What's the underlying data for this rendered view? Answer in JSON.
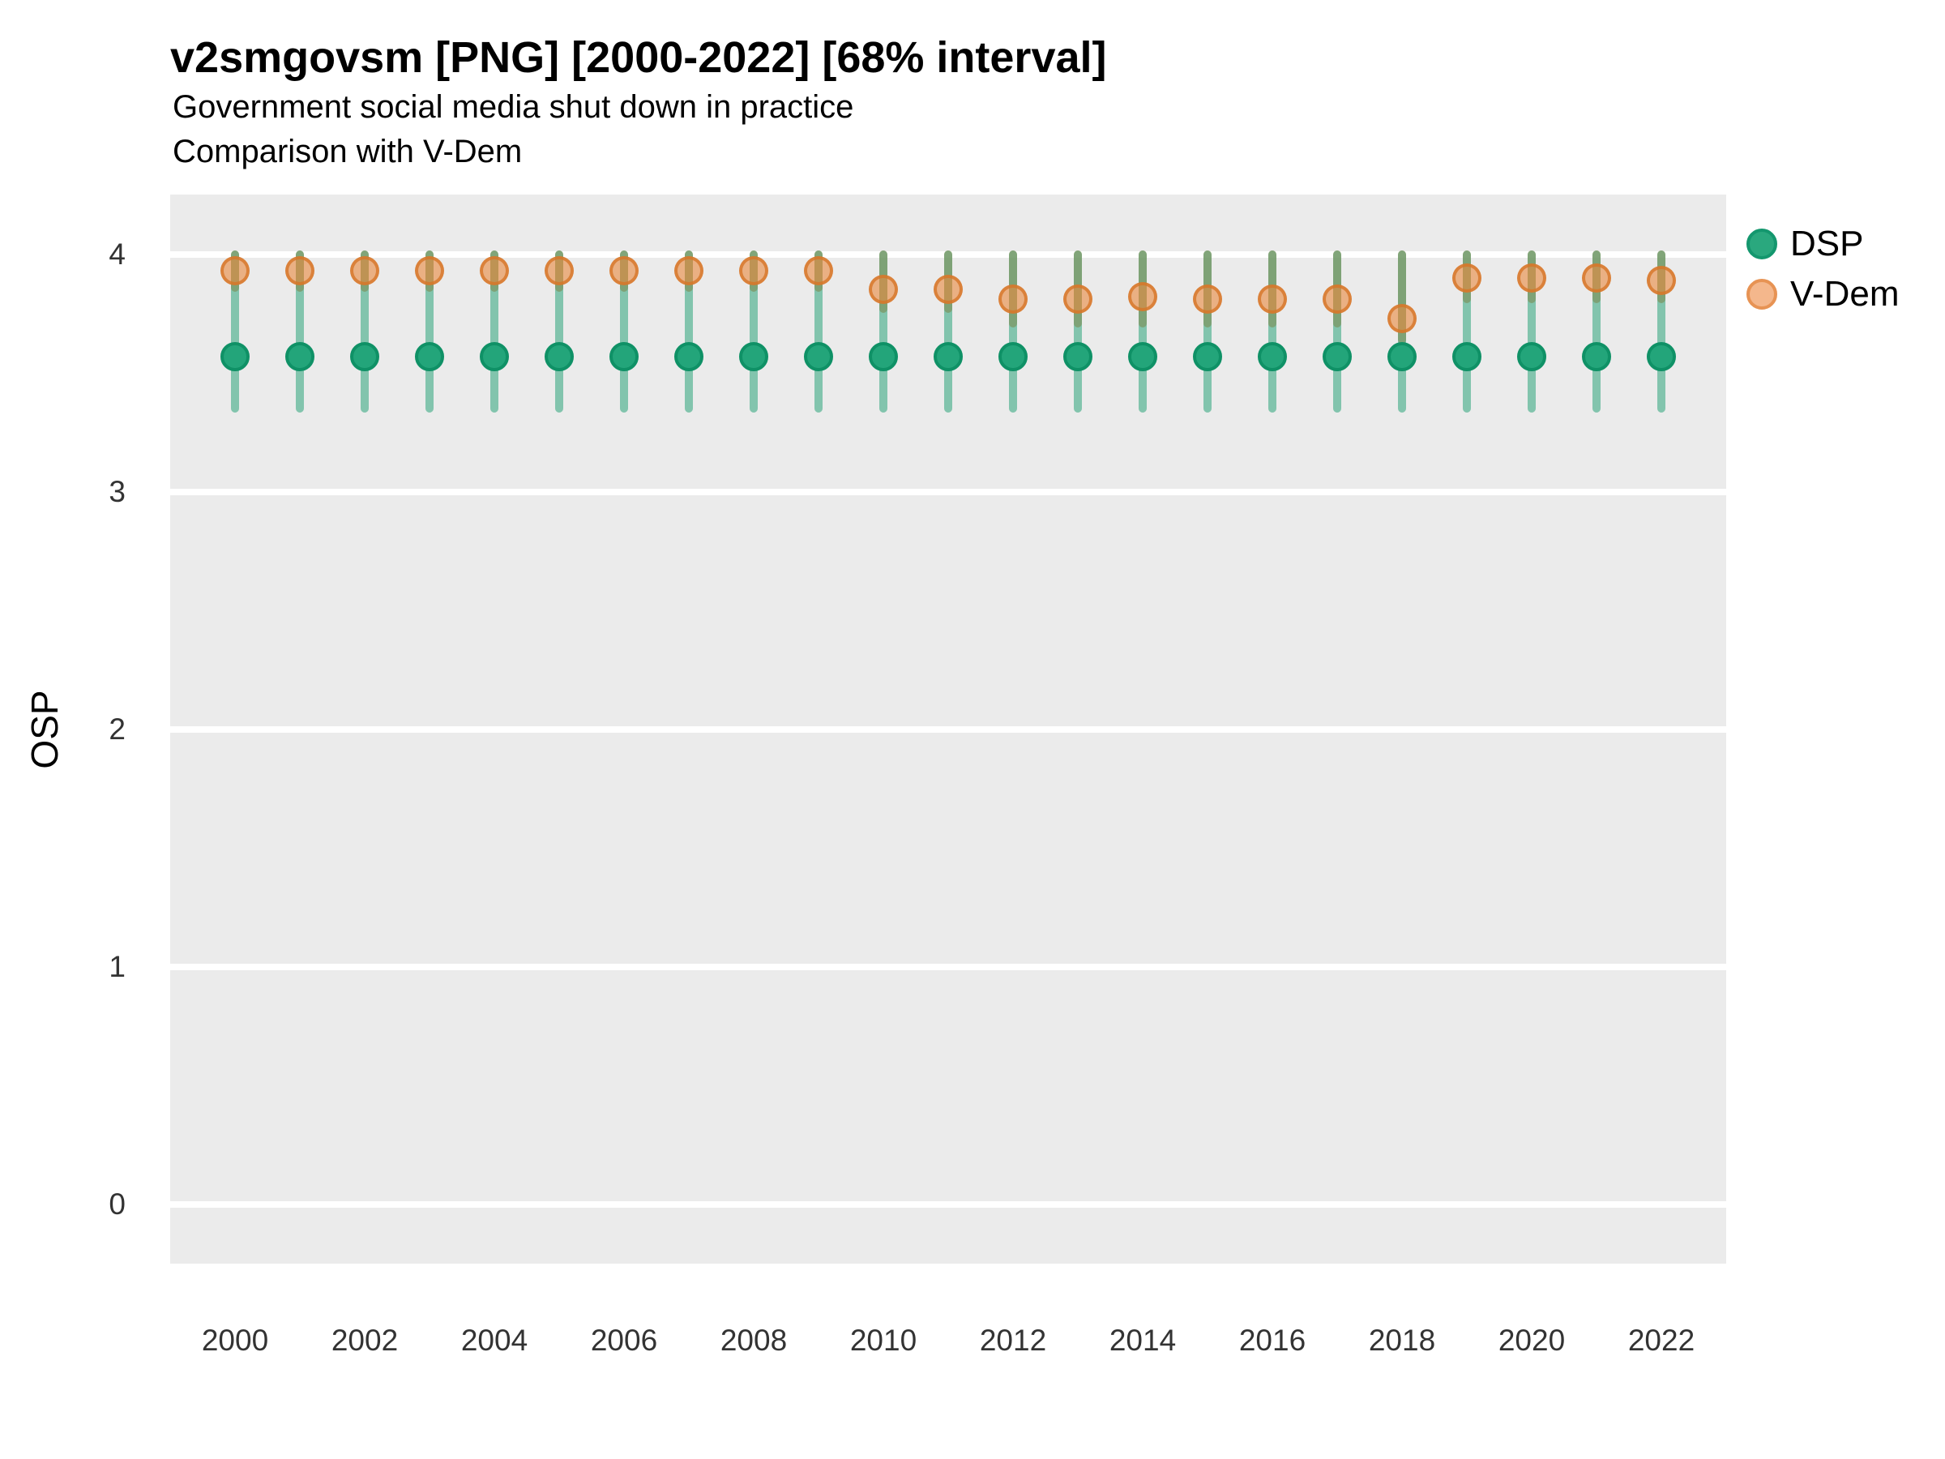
{
  "header": {
    "title": "v2smgovsm [PNG] [2000-2022] [68% interval]",
    "subtitle1": "Government social media shut down in practice",
    "subtitle2": "Comparison with V-Dem"
  },
  "axes": {
    "y_title": "OSP",
    "y_tick_labels": [
      "4",
      "3",
      "2",
      "1",
      "0"
    ],
    "x_tick_labels": [
      "2000",
      "2002",
      "2004",
      "2006",
      "2008",
      "2010",
      "2012",
      "2014",
      "2016",
      "2018",
      "2020",
      "2022"
    ]
  },
  "legend": {
    "items": [
      {
        "label": "DSP"
      },
      {
        "label": "V-Dem"
      }
    ]
  },
  "colors": {
    "panel_bg": "#ebebeb",
    "grid": "#ffffff",
    "axis_text": "#333333",
    "dsp_point_fill": "#23a57a",
    "dsp_point_stroke": "#0f9166",
    "dsp_bar": "rgba(26,158,112,0.5)",
    "vdem_point_fill": "rgba(233,136,62,0.6)",
    "vdem_point_stroke": "rgba(214,117,40,0.8)",
    "vdem_bar": "rgba(224,138,77,0.7)",
    "legend_dsp_fill": "#2aa87e",
    "legend_dsp_stroke": "#14976e",
    "legend_vdem_fill": "#f4b78c",
    "legend_vdem_stroke": "#e79354"
  },
  "chart_data": {
    "type": "scatter",
    "title": "v2smgovsm [PNG] [2000-2022] [68% interval]",
    "subtitle": [
      "Government social media shut down in practice",
      "Comparison with V-Dem"
    ],
    "ylabel": "OSP",
    "interval": "68%",
    "x": [
      2000,
      2001,
      2002,
      2003,
      2004,
      2005,
      2006,
      2007,
      2008,
      2009,
      2010,
      2011,
      2012,
      2013,
      2014,
      2015,
      2016,
      2017,
      2018,
      2019,
      2020,
      2021,
      2022
    ],
    "x_tick_years": [
      2000,
      2002,
      2004,
      2006,
      2008,
      2010,
      2012,
      2014,
      2016,
      2018,
      2020,
      2022
    ],
    "yticks": [
      4,
      3,
      2,
      1,
      0
    ],
    "ylim": [
      -0.25,
      4.25
    ],
    "grid": "white-major-horizontal",
    "legend_position": "right",
    "panel_bg": "#ebebeb",
    "series": [
      {
        "name": "DSP",
        "estimates": [
          3.57,
          3.57,
          3.57,
          3.57,
          3.57,
          3.57,
          3.57,
          3.57,
          3.57,
          3.57,
          3.57,
          3.57,
          3.57,
          3.57,
          3.57,
          3.57,
          3.57,
          3.57,
          3.57,
          3.57,
          3.57,
          3.57,
          3.57
        ],
        "lower": [
          3.35,
          3.35,
          3.35,
          3.35,
          3.35,
          3.35,
          3.35,
          3.35,
          3.35,
          3.35,
          3.35,
          3.35,
          3.35,
          3.35,
          3.35,
          3.35,
          3.35,
          3.35,
          3.35,
          3.35,
          3.35,
          3.35,
          3.35
        ],
        "upper": [
          4.0,
          4.0,
          4.0,
          4.0,
          4.0,
          4.0,
          4.0,
          4.0,
          4.0,
          4.0,
          4.0,
          4.0,
          4.0,
          4.0,
          4.0,
          4.0,
          4.0,
          4.0,
          4.0,
          4.0,
          4.0,
          4.0,
          4.0
        ]
      },
      {
        "name": "V-Dem",
        "estimates": [
          3.93,
          3.93,
          3.93,
          3.93,
          3.93,
          3.93,
          3.93,
          3.93,
          3.93,
          3.93,
          3.85,
          3.85,
          3.81,
          3.81,
          3.82,
          3.81,
          3.81,
          3.81,
          3.73,
          3.9,
          3.9,
          3.9,
          3.89
        ],
        "lower": [
          3.86,
          3.86,
          3.86,
          3.86,
          3.86,
          3.86,
          3.86,
          3.86,
          3.86,
          3.86,
          3.77,
          3.77,
          3.71,
          3.71,
          3.71,
          3.71,
          3.71,
          3.71,
          3.64,
          3.81,
          3.81,
          3.81,
          3.81
        ],
        "upper": [
          4.0,
          4.0,
          4.0,
          4.0,
          4.0,
          4.0,
          4.0,
          4.0,
          4.0,
          4.0,
          4.0,
          4.0,
          4.0,
          4.0,
          4.0,
          4.0,
          4.0,
          4.0,
          4.0,
          4.0,
          4.0,
          4.0,
          4.0
        ]
      }
    ]
  }
}
